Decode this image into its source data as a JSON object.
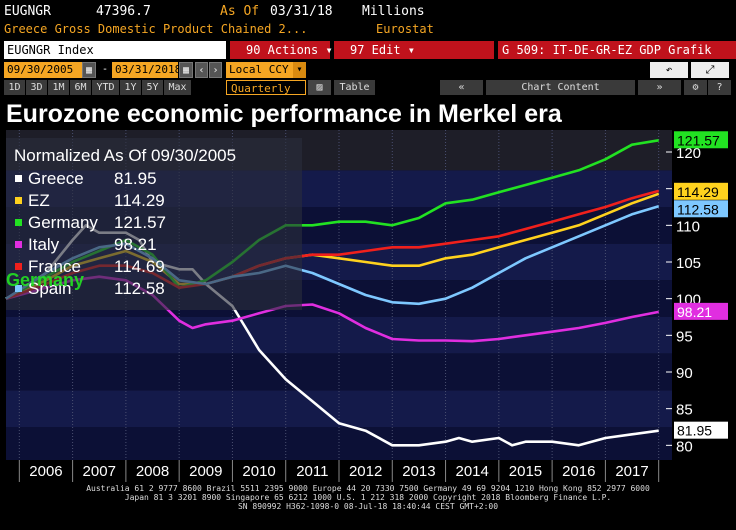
{
  "header": {
    "ticker": "EUGNGR",
    "value": "47396.7",
    "as_of_label": "As Of",
    "as_of_date": "03/31/18",
    "units": "Millions",
    "description": "Greece Gross Domestic Product Chained 2...",
    "source": "Eurostat"
  },
  "command_bar": {
    "index_field": "EUGNGR Index",
    "actions": "90 Actions ▾",
    "edit": "97 Edit ▾",
    "function_title": "G 509: IT-DE-GR-EZ GDP Grafik"
  },
  "date_bar": {
    "start_date": "09/30/2005",
    "end_date": "03/31/2018",
    "currency": "Local CCY",
    "frequency": "Quarterly",
    "table_label": "Table",
    "chart_content_label": "Chart Content"
  },
  "period_buttons": [
    "1D",
    "3D",
    "1M",
    "6M",
    "YTD",
    "1Y",
    "5Y",
    "Max"
  ],
  "title": "Eurozone economic performance in Merkel era",
  "colors": {
    "greece": "#ffffff",
    "ez": "#ffd21e",
    "germany": "#22e222",
    "italy": "#e02ee0",
    "france": "#f0201c",
    "spain": "#7ec8ff",
    "accent": "#f5a623",
    "brand_red": "#c0121c"
  },
  "chart_data": {
    "type": "line",
    "title": "Eurozone economic performance in Merkel era",
    "legend_title": "Normalized As Of 09/30/2005",
    "legend_position": "top-left",
    "ylim": [
      78,
      123
    ],
    "xlim": [
      2005.75,
      2018.25
    ],
    "yticks": [
      80,
      85,
      90,
      95,
      100,
      105,
      110,
      115,
      120
    ],
    "xtick_labels": [
      "2006",
      "2007",
      "2008",
      "2009",
      "2010",
      "2011",
      "2012",
      "2013",
      "2014",
      "2015",
      "2016",
      "2017"
    ],
    "series": [
      {
        "name": "Greece",
        "key": "greece",
        "last_value": "81.95",
        "label_text": "81.95",
        "x": [
          2005.75,
          2006,
          2006.5,
          2007,
          2007.25,
          2007.5,
          2008,
          2008.25,
          2008.5,
          2009,
          2009.25,
          2009.5,
          2010,
          2010.25,
          2010.5,
          2011,
          2011.5,
          2012,
          2012.5,
          2013,
          2013.5,
          2014,
          2014.25,
          2014.5,
          2015,
          2015.25,
          2015.5,
          2016,
          2016.5,
          2017,
          2017.5,
          2018
        ],
        "y": [
          100,
          101,
          103.5,
          108,
          110,
          109,
          109,
          108,
          105,
          104,
          104,
          102,
          99,
          96,
          93,
          89,
          86,
          83,
          82,
          80,
          80,
          80.5,
          81,
          80.5,
          81,
          80,
          80.5,
          80.5,
          80,
          81,
          81.5,
          82
        ]
      },
      {
        "name": "EZ",
        "key": "ez",
        "last_value": "114.29",
        "label_text": "114.29",
        "x": [
          2005.75,
          2006.5,
          2007,
          2007.5,
          2008,
          2008.5,
          2009,
          2009.5,
          2010,
          2010.5,
          2011,
          2011.5,
          2012,
          2012.5,
          2013,
          2013.5,
          2014,
          2014.5,
          2015,
          2015.5,
          2016,
          2016.5,
          2017,
          2017.5,
          2018
        ],
        "y": [
          100,
          102.5,
          104.5,
          105.5,
          106.5,
          105,
          102,
          102,
          103,
          104.5,
          105.5,
          106,
          105.5,
          105,
          104.5,
          104.5,
          105.5,
          106,
          107,
          108,
          109,
          110,
          111.5,
          113,
          114.3
        ]
      },
      {
        "name": "Germany",
        "key": "germany",
        "last_value": "121.57",
        "label_text": "121.57",
        "x": [
          2005.75,
          2006.5,
          2007,
          2007.5,
          2008,
          2008.5,
          2009,
          2009.5,
          2010,
          2010.5,
          2011,
          2011.5,
          2012,
          2012.5,
          2013,
          2013.5,
          2014,
          2014.5,
          2015,
          2015.5,
          2016,
          2016.5,
          2017,
          2017.5,
          2018
        ],
        "y": [
          100,
          103,
          105,
          106.5,
          108,
          106,
          101.5,
          102.5,
          105,
          108,
          110,
          110,
          110.5,
          110.5,
          110,
          111,
          113,
          113.5,
          114.5,
          115.5,
          116.5,
          117.5,
          119,
          121,
          121.6
        ]
      },
      {
        "name": "Italy",
        "key": "italy",
        "last_value": "98.21",
        "label_text": "98.21",
        "x": [
          2005.75,
          2006.5,
          2007,
          2007.5,
          2008,
          2008.5,
          2009,
          2009.25,
          2009.5,
          2010,
          2010.5,
          2011,
          2011.5,
          2012,
          2012.5,
          2013,
          2013.5,
          2014,
          2014.5,
          2015,
          2015.5,
          2016,
          2016.5,
          2017,
          2017.5,
          2018
        ],
        "y": [
          100,
          101.5,
          102.5,
          103,
          102.5,
          100.5,
          97,
          96,
          96.5,
          97,
          98,
          99,
          99.2,
          98,
          96,
          94.5,
          94.3,
          94.3,
          94.2,
          94.5,
          95,
          95.5,
          96,
          96.7,
          97.5,
          98.2
        ]
      },
      {
        "name": "France",
        "key": "france",
        "last_value": "114.69",
        "label_text": "114.69",
        "x": [
          2005.75,
          2006.5,
          2007,
          2007.5,
          2008,
          2008.5,
          2009,
          2009.5,
          2010,
          2010.5,
          2011,
          2011.5,
          2012,
          2012.5,
          2013,
          2013.5,
          2014,
          2014.5,
          2015,
          2015.5,
          2016,
          2016.5,
          2017,
          2017.5,
          2018
        ],
        "y": [
          100,
          102,
          103.5,
          104.5,
          104.5,
          103.5,
          101.5,
          102,
          103,
          104.5,
          105.5,
          106,
          106,
          106.5,
          107,
          107,
          107.5,
          108,
          108.5,
          109.5,
          110.5,
          111.5,
          112.5,
          113.7,
          114.7
        ]
      },
      {
        "name": "Spain",
        "key": "spain",
        "last_value": "112.58",
        "label_text": "112.58",
        "x": [
          2005.75,
          2006.5,
          2007,
          2007.5,
          2008,
          2008.5,
          2009,
          2009.5,
          2010,
          2010.5,
          2011,
          2011.5,
          2012,
          2012.5,
          2013,
          2013.5,
          2014,
          2014.5,
          2015,
          2015.5,
          2016,
          2016.5,
          2017,
          2017.5,
          2018
        ],
        "y": [
          100,
          103.5,
          105.5,
          107,
          107.5,
          105.5,
          102.5,
          102,
          103,
          103.5,
          104.5,
          103.5,
          102,
          100.5,
          99.5,
          99.3,
          100,
          101.5,
          103.5,
          105.5,
          107,
          108.5,
          110,
          111.5,
          112.6
        ]
      }
    ],
    "annotation": "Germany"
  },
  "footer": {
    "line1": "Australia 61 2 9777 8600 Brazil 5511 2395 9000 Europe 44 20 7330 7500 Germany 49 69 9204 1210 Hong Kong 852 2977 6000",
    "line2": "Japan 81 3 3201 8900     Singapore 65 6212 1000     U.S. 1 212 318 2000         Copyright 2018 Bloomberg Finance L.P.",
    "line3": "SN 890992 H362-1098-0 08-Jul-18 18:40:44 CEST GMT+2:00"
  }
}
